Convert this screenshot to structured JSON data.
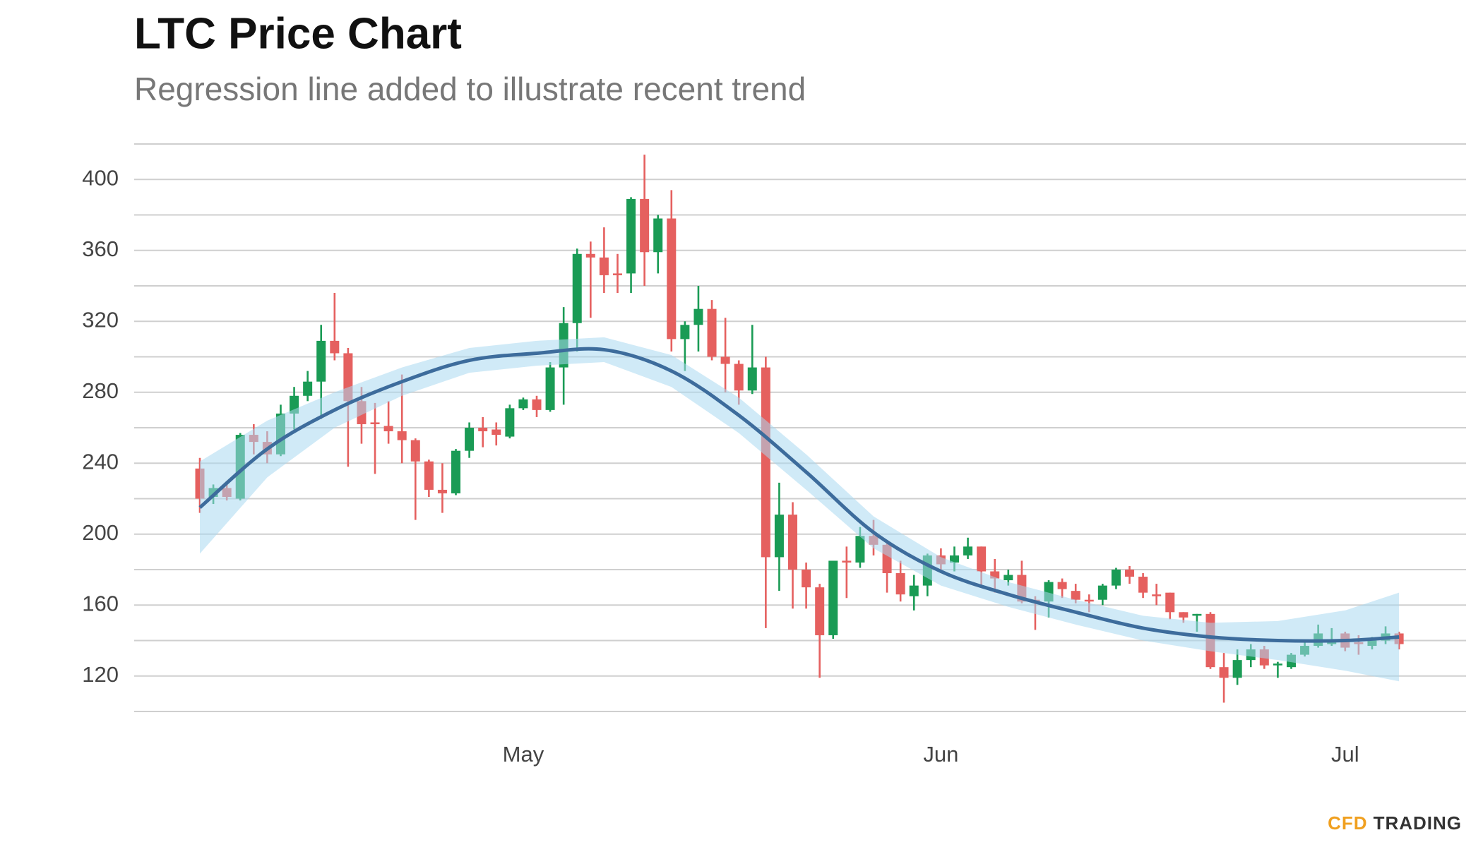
{
  "chart_data": {
    "type": "candlestick",
    "title": "LTC Price Chart",
    "subtitle": "Regression line added to illustrate recent trend",
    "brand": [
      "CFD",
      "TRADING"
    ],
    "categories": [
      null,
      null,
      null,
      null,
      null,
      null,
      null,
      null,
      null,
      null,
      null,
      null,
      null,
      null,
      null,
      null,
      null,
      null,
      null,
      null,
      null,
      null,
      null,
      null,
      "May",
      null,
      null,
      null,
      null,
      null,
      null,
      null,
      null,
      null,
      null,
      null,
      null,
      null,
      null,
      null,
      null,
      null,
      null,
      null,
      null,
      null,
      null,
      null,
      null,
      null,
      null,
      null,
      null,
      null,
      null,
      "Jun",
      null,
      null,
      null,
      null,
      null,
      null,
      null,
      null,
      null,
      null,
      null,
      null,
      null,
      null,
      null,
      null,
      null,
      null,
      null,
      null,
      null,
      null,
      null,
      null,
      null,
      null,
      null,
      null,
      null,
      "Jul",
      null,
      null,
      null,
      null
    ],
    "open": [
      237,
      221,
      226,
      220,
      256,
      252,
      245,
      268,
      278,
      286,
      309,
      302,
      275,
      263,
      261,
      258,
      253,
      241,
      225,
      223,
      247,
      260,
      259,
      255,
      271,
      276,
      270,
      294,
      319,
      358,
      356,
      347,
      347,
      389,
      359,
      378,
      310,
      318,
      327,
      300,
      296,
      281,
      294,
      187,
      211,
      180,
      170,
      143,
      185,
      184,
      199,
      194,
      178,
      165,
      171,
      188,
      184,
      188,
      193,
      179,
      174,
      177,
      163,
      162,
      173,
      168,
      163,
      163,
      171,
      180,
      176,
      166,
      167,
      156,
      154,
      155,
      125,
      119,
      129,
      135,
      126,
      125,
      132,
      137,
      138,
      144,
      139,
      137,
      140,
      144
    ],
    "high": [
      243,
      228,
      228,
      257,
      262,
      258,
      273,
      283,
      292,
      318,
      336,
      305,
      283,
      274,
      275,
      290,
      254,
      242,
      240,
      248,
      263,
      266,
      263,
      273,
      277,
      278,
      297,
      328,
      361,
      365,
      373,
      358,
      390,
      414,
      380,
      394,
      320,
      340,
      332,
      322,
      298,
      318,
      300,
      229,
      218,
      184,
      172,
      185,
      193,
      204,
      208,
      196,
      185,
      177,
      189,
      192,
      193,
      198,
      193,
      186,
      180,
      185,
      165,
      174,
      175,
      172,
      166,
      172,
      181,
      182,
      178,
      172,
      167,
      156,
      155,
      156,
      133,
      135,
      138,
      137,
      128,
      133,
      140,
      149,
      147,
      145,
      143,
      142,
      148,
      145
    ],
    "low": [
      212,
      217,
      219,
      219,
      245,
      240,
      244,
      259,
      275,
      265,
      298,
      238,
      251,
      234,
      251,
      240,
      208,
      221,
      212,
      222,
      243,
      249,
      250,
      254,
      270,
      266,
      269,
      273,
      303,
      322,
      336,
      336,
      336,
      340,
      347,
      303,
      292,
      303,
      298,
      280,
      273,
      279,
      147,
      168,
      158,
      158,
      119,
      141,
      164,
      181,
      188,
      167,
      162,
      157,
      165,
      178,
      179,
      186,
      170,
      167,
      171,
      161,
      146,
      153,
      164,
      161,
      156,
      160,
      169,
      172,
      164,
      160,
      152,
      150,
      145,
      124,
      105,
      115,
      125,
      124,
      119,
      124,
      131,
      136,
      137,
      134,
      132,
      135,
      138,
      135
    ],
    "close": [
      220,
      226,
      221,
      256,
      252,
      245,
      268,
      278,
      286,
      309,
      302,
      275,
      262,
      262,
      258,
      253,
      241,
      225,
      223,
      247,
      260,
      258,
      256,
      271,
      276,
      270,
      294,
      319,
      358,
      356,
      346,
      346,
      389,
      359,
      378,
      310,
      318,
      327,
      300,
      296,
      281,
      294,
      187,
      211,
      180,
      170,
      143,
      185,
      184,
      199,
      194,
      178,
      166,
      171,
      188,
      183,
      188,
      193,
      179,
      175,
      177,
      162,
      162,
      173,
      169,
      163,
      162,
      171,
      180,
      176,
      167,
      165,
      156,
      153,
      155,
      125,
      119,
      129,
      135,
      126,
      127,
      132,
      137,
      144,
      140,
      136,
      138,
      140,
      144,
      138
    ],
    "up_color": "#1a9b55",
    "down_color": "#e5605f",
    "regression": {
      "x": [
        0,
        5,
        10,
        15,
        20,
        25,
        30,
        35,
        40,
        45,
        50,
        55,
        60,
        65,
        70,
        75,
        80,
        85,
        89
      ],
      "values": [
        215,
        248,
        270,
        286,
        298,
        302,
        304,
        292,
        267,
        235,
        201,
        179,
        166,
        156,
        147,
        142,
        140,
        140,
        142
      ],
      "upper": [
        241,
        264,
        280,
        294,
        305,
        309,
        311,
        301,
        277,
        245,
        210,
        187,
        173,
        163,
        154,
        150,
        151,
        157,
        167
      ],
      "lower": [
        189,
        232,
        260,
        278,
        291,
        295,
        297,
        283,
        257,
        225,
        192,
        171,
        159,
        149,
        140,
        134,
        129,
        123,
        117
      ],
      "color": "#3d6c9c",
      "band_color": "#a9d8f0"
    },
    "ylim": [
      100,
      420
    ],
    "yticks": [
      120,
      160,
      200,
      240,
      280,
      320,
      360,
      400
    ],
    "ygrid": [
      100,
      120,
      140,
      160,
      180,
      200,
      220,
      240,
      260,
      280,
      300,
      320,
      340,
      360,
      380,
      400,
      420
    ],
    "grid": true
  }
}
